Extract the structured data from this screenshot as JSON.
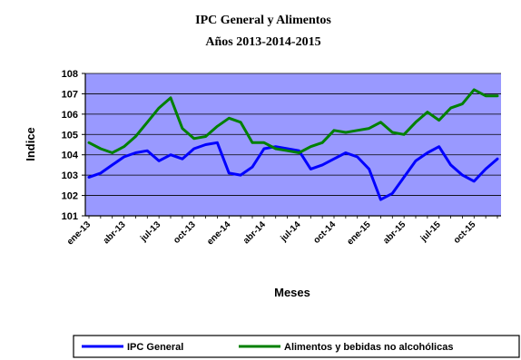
{
  "chart_data": {
    "type": "line",
    "title": "IPC General y Alimentos",
    "subtitle": "Años 2013-2014-2015",
    "xlabel": "Meses",
    "ylabel": "Indice",
    "ylim": [
      101,
      108
    ],
    "yticks": [
      101,
      102,
      103,
      104,
      105,
      106,
      107,
      108
    ],
    "grid": true,
    "legend_position": "bottom",
    "tick_labels": [
      "ene-13",
      "abr-13",
      "jul-13",
      "oct-13",
      "ene-14",
      "abr-14",
      "jul-14",
      "oct-14",
      "ene-15",
      "abr-15",
      "jul-15",
      "oct-15"
    ],
    "categories": [
      "ene-13",
      "feb-13",
      "mar-13",
      "abr-13",
      "may-13",
      "jun-13",
      "jul-13",
      "ago-13",
      "sep-13",
      "oct-13",
      "nov-13",
      "dic-13",
      "ene-14",
      "feb-14",
      "mar-14",
      "abr-14",
      "may-14",
      "jun-14",
      "jul-14",
      "ago-14",
      "sep-14",
      "oct-14",
      "nov-14",
      "dic-14",
      "ene-15",
      "feb-15",
      "mar-15",
      "abr-15",
      "may-15",
      "jun-15",
      "jul-15",
      "ago-15",
      "sep-15",
      "oct-15",
      "nov-15",
      "dic-15"
    ],
    "series": [
      {
        "name": "IPC General",
        "color": "#0000ff",
        "values": [
          102.9,
          103.1,
          103.5,
          103.9,
          104.1,
          104.2,
          103.7,
          104.0,
          103.8,
          104.3,
          104.5,
          104.6,
          103.1,
          103.0,
          103.4,
          104.3,
          104.4,
          104.3,
          104.2,
          103.3,
          103.5,
          103.8,
          104.1,
          103.9,
          103.3,
          101.8,
          102.1,
          102.9,
          103.7,
          104.1,
          104.4,
          103.5,
          103.0,
          102.7,
          103.3,
          103.8
        ]
      },
      {
        "name": "Alimentos y bebidas no alcohólicas",
        "color": "#008000",
        "values": [
          104.6,
          104.3,
          104.1,
          104.4,
          104.9,
          105.6,
          106.3,
          106.8,
          105.3,
          104.8,
          104.9,
          105.4,
          105.8,
          105.6,
          104.6,
          104.6,
          104.3,
          104.2,
          104.1,
          104.4,
          104.6,
          105.2,
          105.1,
          105.2,
          105.3,
          105.6,
          105.1,
          105.0,
          105.6,
          106.1,
          105.7,
          106.3,
          106.5,
          107.2,
          106.9,
          106.9
        ]
      }
    ]
  }
}
